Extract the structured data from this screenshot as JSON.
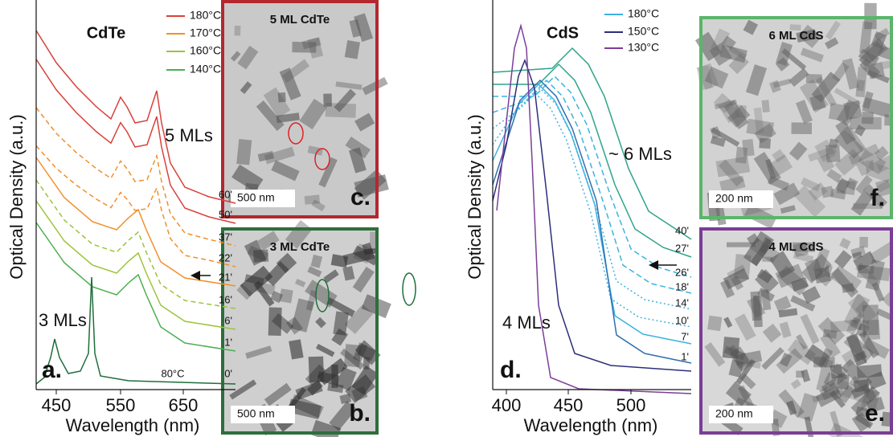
{
  "panel_a": {
    "title": "CdTe",
    "panel_label": "a.",
    "y_label": "Optical Density (a.u.)",
    "x_label": "Wavelength (nm)",
    "x_ticks": [
      "450",
      "550",
      "650"
    ],
    "legend": [
      {
        "label": "180°C",
        "color": "#d9413a"
      },
      {
        "label": "170°C",
        "color": "#f0902c"
      },
      {
        "label": "160°C",
        "color": "#9cc43c"
      },
      {
        "label": "140°C",
        "color": "#4caf50"
      }
    ],
    "curve_labels": [
      "60'",
      "50'",
      "37'",
      "22'",
      "21'",
      "16'",
      "6'",
      "1'",
      "0'"
    ],
    "annotations": [
      "5 MLs",
      "3 MLs",
      "80°C"
    ]
  },
  "panel_b": {
    "title": "3 ML CdTe",
    "scale": "500 nm",
    "panel_label": "b."
  },
  "panel_c": {
    "title": "5 ML CdTe",
    "scale": "500 nm",
    "panel_label": "c."
  },
  "panel_d": {
    "title": "CdS",
    "panel_label": "d.",
    "y_label": "Optical Density (a.u.)",
    "x_label": "Wavelength (nm)",
    "x_ticks": [
      "400",
      "450",
      "500"
    ],
    "legend": [
      {
        "label": "180°C",
        "color": "#3db2e0"
      },
      {
        "label": "150°C",
        "color": "#2d2e7a"
      },
      {
        "label": "130°C",
        "color": "#7c3e99"
      }
    ],
    "curve_labels": [
      "40'",
      "27'",
      "26'",
      "18'",
      "14'",
      "10'",
      "7'",
      "1'"
    ],
    "annotations": [
      "~ 6 MLs",
      "4 MLs"
    ]
  },
  "panel_e": {
    "title": "4 ML CdS",
    "scale": "200 nm",
    "panel_label": "e."
  },
  "panel_f": {
    "title": "6 ML CdS",
    "scale": "200 nm",
    "panel_label": "f."
  }
}
